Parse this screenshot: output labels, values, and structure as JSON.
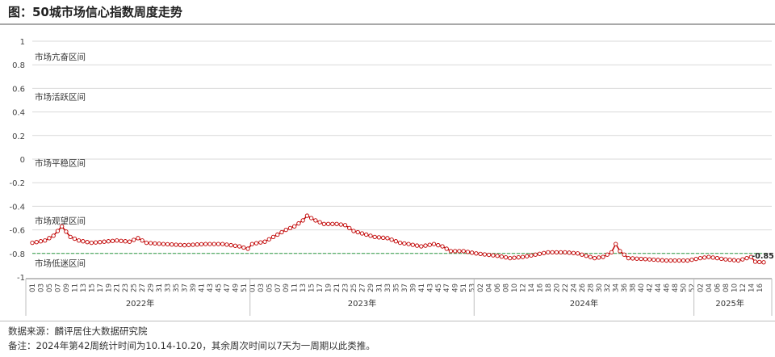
{
  "title": "图：50城市场信心指数周度走势",
  "source": "数据来源：麟评居住大数据研究院",
  "note": "备注：2024年第42周统计时间为10.14-10.20，其余周次时间以7天为一周期以此类推。",
  "colors": {
    "series": "#c00000",
    "threshold": "#2e9e44",
    "grid": "#d9d9d9",
    "axis": "#7f7f7f"
  },
  "chart_data": {
    "type": "line",
    "ylim": [
      -1,
      1
    ],
    "yticks": [
      "1",
      "0.8",
      "0.6",
      "0.4",
      "0.2",
      "0",
      "-0.2",
      "-0.4",
      "-0.6",
      "-0.8",
      "-1"
    ],
    "ytick_values": [
      1,
      0.8,
      0.6,
      0.4,
      0.2,
      0,
      -0.2,
      -0.4,
      -0.6,
      -0.8,
      -1
    ],
    "threshold": -0.8,
    "zones": [
      "市场亢奋区间",
      "市场活跃区间",
      "市场平稳区间",
      "市场观望区间",
      "市场低迷区间"
    ],
    "zone_values": [
      0.87,
      0.53,
      -0.03,
      -0.52,
      -0.88
    ],
    "years": [
      {
        "label": "2022年",
        "weeks": 52
      },
      {
        "label": "2023年",
        "weeks": 53
      },
      {
        "label": "2024年",
        "weeks": 52
      },
      {
        "label": "2025年",
        "weeks": 17
      }
    ],
    "xtick_labels": [
      [
        "01",
        "03",
        "05",
        "07",
        "09",
        "11",
        "13",
        "15",
        "17",
        "19",
        "21",
        "23",
        "25",
        "27",
        "29",
        "31",
        "33",
        "35",
        "37",
        "39",
        "41",
        "43",
        "45",
        "47",
        "49",
        "51"
      ],
      [
        "01",
        "03",
        "05",
        "07",
        "09",
        "11",
        "13",
        "15",
        "17",
        "19",
        "21",
        "23",
        "25",
        "27",
        "29",
        "31",
        "33",
        "35",
        "37",
        "39",
        "41",
        "43",
        "45",
        "47",
        "49",
        "51",
        "53"
      ],
      [
        "02",
        "04",
        "06",
        "08",
        "10",
        "12",
        "14",
        "16",
        "18",
        "20",
        "22",
        "24",
        "26",
        "28",
        "30",
        "32",
        "34",
        "36",
        "38",
        "40",
        "42",
        "44",
        "46",
        "48",
        "50",
        "52"
      ],
      [
        "02",
        "04",
        "06",
        "08",
        "10",
        "12",
        "14",
        "16"
      ]
    ],
    "last_label": "-0.85",
    "anchors": [
      [
        0,
        -0.71
      ],
      [
        3,
        -0.69
      ],
      [
        5,
        -0.65
      ],
      [
        7,
        -0.57
      ],
      [
        9,
        -0.66
      ],
      [
        11,
        -0.69
      ],
      [
        14,
        -0.71
      ],
      [
        17,
        -0.7
      ],
      [
        20,
        -0.69
      ],
      [
        23,
        -0.7
      ],
      [
        25,
        -0.67
      ],
      [
        27,
        -0.71
      ],
      [
        31,
        -0.72
      ],
      [
        36,
        -0.73
      ],
      [
        41,
        -0.72
      ],
      [
        45,
        -0.72
      ],
      [
        49,
        -0.74
      ],
      [
        51,
        -0.76
      ],
      [
        52,
        -0.72
      ],
      [
        55,
        -0.7
      ],
      [
        57,
        -0.66
      ],
      [
        60,
        -0.6
      ],
      [
        62,
        -0.57
      ],
      [
        64,
        -0.52
      ],
      [
        65,
        -0.48
      ],
      [
        67,
        -0.52
      ],
      [
        69,
        -0.55
      ],
      [
        72,
        -0.55
      ],
      [
        74,
        -0.56
      ],
      [
        76,
        -0.61
      ],
      [
        78,
        -0.63
      ],
      [
        81,
        -0.66
      ],
      [
        84,
        -0.67
      ],
      [
        87,
        -0.71
      ],
      [
        89,
        -0.72
      ],
      [
        92,
        -0.74
      ],
      [
        95,
        -0.72
      ],
      [
        97,
        -0.74
      ],
      [
        99,
        -0.78
      ],
      [
        102,
        -0.78
      ],
      [
        105,
        -0.8
      ],
      [
        110,
        -0.82
      ],
      [
        113,
        -0.84
      ],
      [
        116,
        -0.83
      ],
      [
        119,
        -0.81
      ],
      [
        122,
        -0.79
      ],
      [
        126,
        -0.79
      ],
      [
        129,
        -0.8
      ],
      [
        131,
        -0.82
      ],
      [
        133,
        -0.84
      ],
      [
        135,
        -0.83
      ],
      [
        137,
        -0.79
      ],
      [
        138,
        -0.72
      ],
      [
        139,
        -0.78
      ],
      [
        141,
        -0.84
      ],
      [
        146,
        -0.85
      ],
      [
        150,
        -0.86
      ],
      [
        155,
        -0.86
      ],
      [
        158,
        -0.84
      ],
      [
        160,
        -0.83
      ],
      [
        164,
        -0.85
      ],
      [
        167,
        -0.86
      ],
      [
        170,
        -0.83
      ],
      [
        171,
        -0.87
      ],
      [
        175,
        -0.88
      ],
      [
        180,
        -0.88
      ],
      [
        184,
        -0.87
      ],
      [
        186,
        -0.84
      ],
      [
        189,
        -0.82
      ],
      [
        192,
        -0.8
      ],
      [
        196,
        -0.82
      ],
      [
        199,
        -0.81
      ],
      [
        202,
        -0.79
      ],
      [
        204,
        -0.82
      ],
      [
        206,
        -0.83
      ],
      [
        209,
        -0.82
      ],
      [
        211,
        -0.78
      ],
      [
        213,
        -0.81
      ],
      [
        216,
        -0.83
      ],
      [
        219,
        -0.84
      ],
      [
        222,
        -0.85
      ],
      [
        224,
        -0.84
      ],
      [
        226,
        -0.86
      ],
      [
        228,
        -0.85
      ]
    ]
  }
}
